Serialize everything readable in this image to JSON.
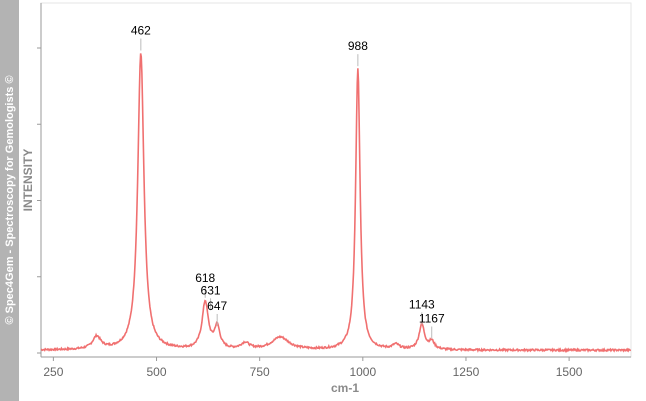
{
  "watermark": "© Spec4Gem - Spectroscopy for Gemologists ©",
  "chart_data": {
    "type": "line",
    "title": "",
    "xlabel": "cm-1",
    "ylabel": "INTENSITY",
    "xlim": [
      220,
      1650
    ],
    "ylim": [
      0,
      1
    ],
    "x_ticks": [
      250,
      500,
      750,
      1000,
      1250,
      1500
    ],
    "grid": false,
    "line_color": "#f07070",
    "peaks": [
      {
        "label": "462",
        "x": 462,
        "y": 0.96
      },
      {
        "label": "618",
        "x": 618,
        "y": 0.17
      },
      {
        "label": "631",
        "x": 631,
        "y": 0.13
      },
      {
        "label": "647",
        "x": 647,
        "y": 0.08
      },
      {
        "label": "988",
        "x": 988,
        "y": 0.91
      },
      {
        "label": "1143",
        "x": 1143,
        "y": 0.085
      },
      {
        "label": "1167",
        "x": 1167,
        "y": 0.04
      }
    ]
  }
}
